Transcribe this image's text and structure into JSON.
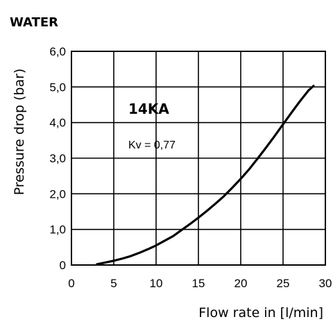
{
  "chart_data": {
    "type": "line",
    "title": "WATER",
    "xlabel": "Flow rate in [l/min]",
    "ylabel": "Pressure drop (bar)",
    "xlim": [
      0,
      30
    ],
    "ylim": [
      0,
      6
    ],
    "xticks": [
      "0",
      "5",
      "10",
      "15",
      "20",
      "25",
      "30"
    ],
    "yticks": [
      "0",
      "1,0",
      "2,0",
      "3,0",
      "4,0",
      "5,0",
      "6,0"
    ],
    "grid": true,
    "annotations": {
      "model": "14KA",
      "kv": "Kv = 0,77"
    },
    "series": [
      {
        "x": [
          3,
          4,
          5,
          6,
          7,
          8,
          9,
          10,
          11,
          12,
          13,
          14,
          15,
          16,
          17,
          18,
          19,
          20,
          21,
          22,
          23,
          24,
          25,
          26,
          27,
          28,
          28.6
        ],
        "values": [
          0.02,
          0.07,
          0.12,
          0.18,
          0.25,
          0.34,
          0.44,
          0.55,
          0.68,
          0.81,
          0.98,
          1.15,
          1.33,
          1.52,
          1.72,
          1.93,
          2.17,
          2.42,
          2.69,
          2.99,
          3.3,
          3.62,
          3.95,
          4.28,
          4.6,
          4.9,
          5.03
        ]
      }
    ],
    "colors": {
      "line": "#000000",
      "grid": "#000000"
    }
  }
}
